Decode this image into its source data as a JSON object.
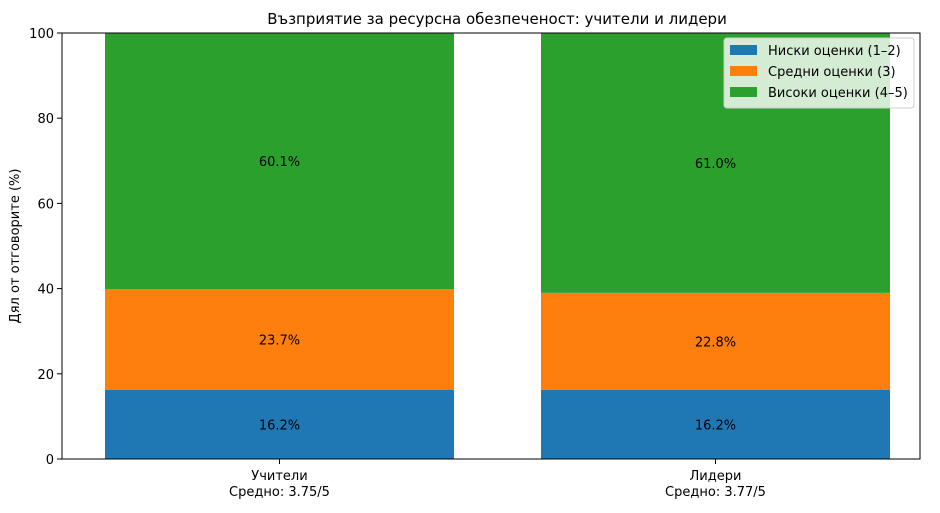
{
  "chart_data": {
    "type": "bar",
    "stacked": true,
    "title": "Възприятие за ресурсна обезпеченост: учители и лидери",
    "ylabel": "Дял от отговорите (%)",
    "xlabel": "",
    "ylim": [
      0,
      100
    ],
    "yticks": [
      "0",
      "20",
      "40",
      "60",
      "80",
      "100"
    ],
    "categories": [
      "Учители",
      "Лидери"
    ],
    "category_sublabels": [
      "Средно: 3.75/5",
      "Средно: 3.77/5"
    ],
    "series": [
      {
        "name": "Ниски оценки (1–2)",
        "values": [
          16.2,
          16.2
        ],
        "labels": [
          "16.2%",
          "16.2%"
        ],
        "color": "#1f77b4"
      },
      {
        "name": "Средни оценки (3)",
        "values": [
          23.7,
          22.8
        ],
        "labels": [
          "23.7%",
          "22.8%"
        ],
        "color": "#ff7f0e"
      },
      {
        "name": "Високи оценки (4–5)",
        "values": [
          60.1,
          61.0
        ],
        "labels": [
          "60.1%",
          "61.0%"
        ],
        "color": "#2ca02c"
      }
    ],
    "legend": "top-right",
    "grid": false
  }
}
